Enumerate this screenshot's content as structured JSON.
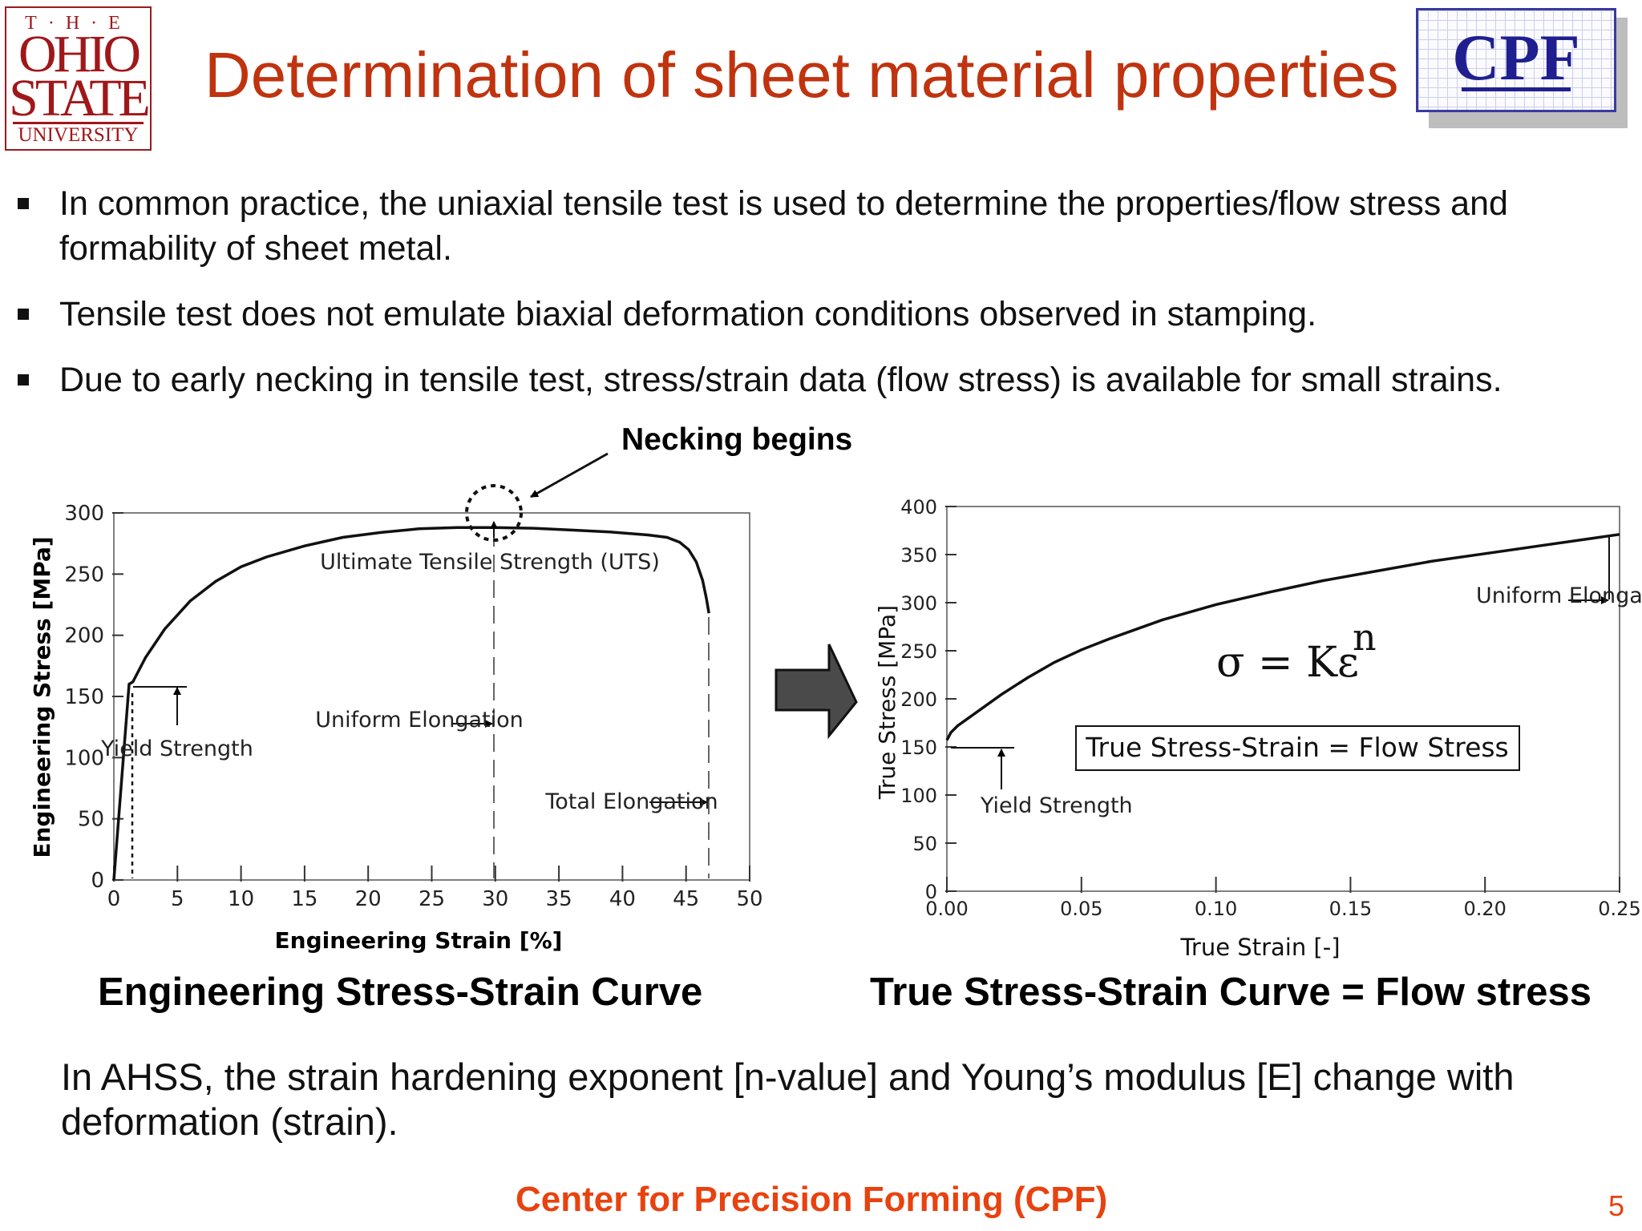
{
  "header": {
    "title": "Determination of sheet material properties",
    "osu_logo": {
      "line1": "T·H·E",
      "line2": "OHIO",
      "line3": "STATE",
      "line4": "UNIVERSITY"
    },
    "cpf_logo": "CPF"
  },
  "bullets": [
    "In common practice, the uniaxial tensile test is used to determine the properties/flow stress and formability of sheet metal.",
    "Tensile test does not emulate biaxial deformation conditions observed in stamping.",
    "Due to early necking in tensile test, stress/strain data (flow stress) is available for small strains."
  ],
  "necking_label": "Necking begins",
  "colors": {
    "title": "#c0330f",
    "footer": "#e8420f",
    "arrow_fill": "#4a4a4a"
  },
  "icons": {
    "transition_arrow": "right-arrow-icon"
  },
  "chart_data": [
    {
      "type": "line",
      "caption": "Engineering Stress-Strain Curve",
      "xlabel": "Engineering Strain [%]",
      "ylabel": "Engineering Stress [MPa]",
      "xlim": [
        0,
        50
      ],
      "ylim": [
        0,
        300
      ],
      "xticks": [
        "0",
        "5",
        "10",
        "15",
        "20",
        "25",
        "30",
        "35",
        "40",
        "45",
        "50"
      ],
      "yticks": [
        "0",
        "50",
        "100",
        "150",
        "200",
        "250",
        "300"
      ],
      "series": [
        {
          "x": [
            0,
            1.2,
            1.5,
            2.5,
            4,
            6,
            8,
            10,
            12,
            15,
            18,
            21,
            24,
            27,
            30,
            33,
            36,
            39,
            42,
            43.5,
            44.5,
            45.2,
            45.8,
            46.3,
            46.6,
            46.8
          ],
          "y": [
            0,
            160,
            162,
            182,
            205,
            228,
            244,
            256,
            264,
            273,
            280,
            284,
            287,
            288,
            288,
            287.5,
            286,
            284.5,
            282,
            280,
            276,
            270,
            260,
            245,
            230,
            218
          ]
        }
      ],
      "annotations": {
        "uts": "Ultimate Tensile Strength (UTS)",
        "uniform": "Uniform Elongation",
        "yield": "Yield Strength",
        "total": "Total Elongation"
      }
    },
    {
      "type": "line",
      "caption": "True Stress-Strain Curve = Flow stress",
      "xlabel": "True Strain [-]",
      "ylabel": "True Stress [MPa]",
      "xlim": [
        0,
        0.25
      ],
      "ylim": [
        0,
        400
      ],
      "xticks": [
        "0.00",
        "0.05",
        "0.10",
        "0.15",
        "0.20",
        "0.25"
      ],
      "yticks": [
        "0",
        "50",
        "100",
        "150",
        "200",
        "250",
        "300",
        "350",
        "400"
      ],
      "series": [
        {
          "x": [
            0.0,
            0.0015,
            0.004,
            0.01,
            0.02,
            0.03,
            0.04,
            0.05,
            0.06,
            0.08,
            0.1,
            0.12,
            0.14,
            0.16,
            0.18,
            0.2,
            0.22,
            0.24,
            0.25
          ],
          "y": [
            157,
            165,
            172,
            184,
            204,
            222,
            238,
            251,
            262,
            282,
            298,
            311,
            323,
            333,
            343,
            351,
            359,
            367,
            371
          ]
        }
      ],
      "annotations": {
        "formula_main": "σ = Kε",
        "formula_exp": "n",
        "box": "True Stress-Strain = Flow Stress",
        "yield": "Yield Strength",
        "uniform": "Uniform Elongation"
      }
    }
  ],
  "bottom_note": "In AHSS, the strain hardening exponent [n-value] and Young’s modulus [E] change with deformation (strain).",
  "footer": {
    "text": "Center for Precision Forming (CPF)",
    "page": "5"
  }
}
